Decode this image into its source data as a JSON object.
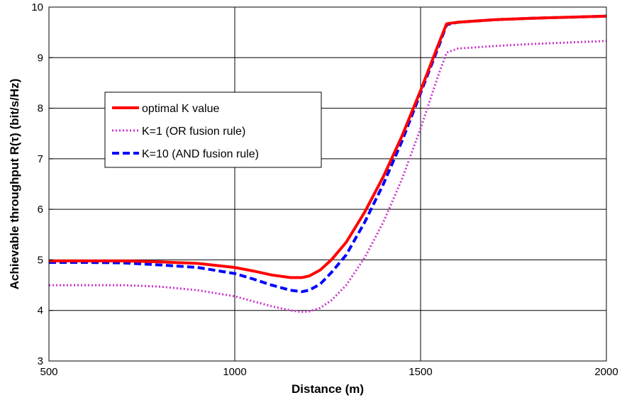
{
  "chart_data": {
    "type": "line",
    "title": "",
    "xlabel": "Distance (m)",
    "ylabel": "Achievable throughput R(τ) (bit/s/Hz)",
    "xlim": [
      500,
      2000
    ],
    "ylim": [
      3,
      10
    ],
    "xticks": [
      500,
      1000,
      1500,
      2000
    ],
    "yticks": [
      3,
      4,
      5,
      6,
      7,
      8,
      9,
      10
    ],
    "grid": true,
    "legend_position": "upper-left-inside",
    "series": [
      {
        "name": "optimal K value",
        "color": "#ff0000",
        "style": "solid",
        "x": [
          500,
          600,
          700,
          800,
          900,
          1000,
          1050,
          1100,
          1150,
          1180,
          1200,
          1230,
          1260,
          1300,
          1350,
          1400,
          1450,
          1500,
          1550,
          1570,
          1600,
          1700,
          1800,
          1900,
          2000
        ],
        "y": [
          4.98,
          4.98,
          4.98,
          4.96,
          4.93,
          4.85,
          4.78,
          4.7,
          4.65,
          4.65,
          4.68,
          4.8,
          5.0,
          5.35,
          5.95,
          6.65,
          7.45,
          8.35,
          9.3,
          9.67,
          9.7,
          9.75,
          9.78,
          9.8,
          9.82
        ]
      },
      {
        "name": "K=1 (OR fusion rule)",
        "color": "#cc33cc",
        "style": "dotted",
        "x": [
          500,
          600,
          700,
          800,
          900,
          1000,
          1050,
          1100,
          1150,
          1180,
          1200,
          1230,
          1260,
          1300,
          1350,
          1400,
          1450,
          1500,
          1550,
          1570,
          1600,
          1700,
          1800,
          1900,
          2000
        ],
        "y": [
          4.5,
          4.5,
          4.5,
          4.47,
          4.4,
          4.28,
          4.18,
          4.08,
          4.0,
          3.97,
          3.98,
          4.05,
          4.2,
          4.5,
          5.05,
          5.75,
          6.6,
          7.6,
          8.7,
          9.1,
          9.18,
          9.23,
          9.27,
          9.3,
          9.33
        ]
      },
      {
        "name": "K=10 (AND fusion rule)",
        "color": "#0000ff",
        "style": "dashed",
        "x": [
          500,
          600,
          700,
          800,
          900,
          1000,
          1050,
          1100,
          1150,
          1180,
          1200,
          1230,
          1260,
          1300,
          1350,
          1400,
          1450,
          1500,
          1550,
          1570,
          1600,
          1700,
          1800,
          1900,
          2000
        ],
        "y": [
          4.95,
          4.95,
          4.94,
          4.9,
          4.85,
          4.73,
          4.62,
          4.5,
          4.4,
          4.37,
          4.4,
          4.52,
          4.75,
          5.1,
          5.75,
          6.5,
          7.35,
          8.3,
          9.25,
          9.65,
          9.7,
          9.75,
          9.78,
          9.8,
          9.82
        ]
      }
    ]
  }
}
